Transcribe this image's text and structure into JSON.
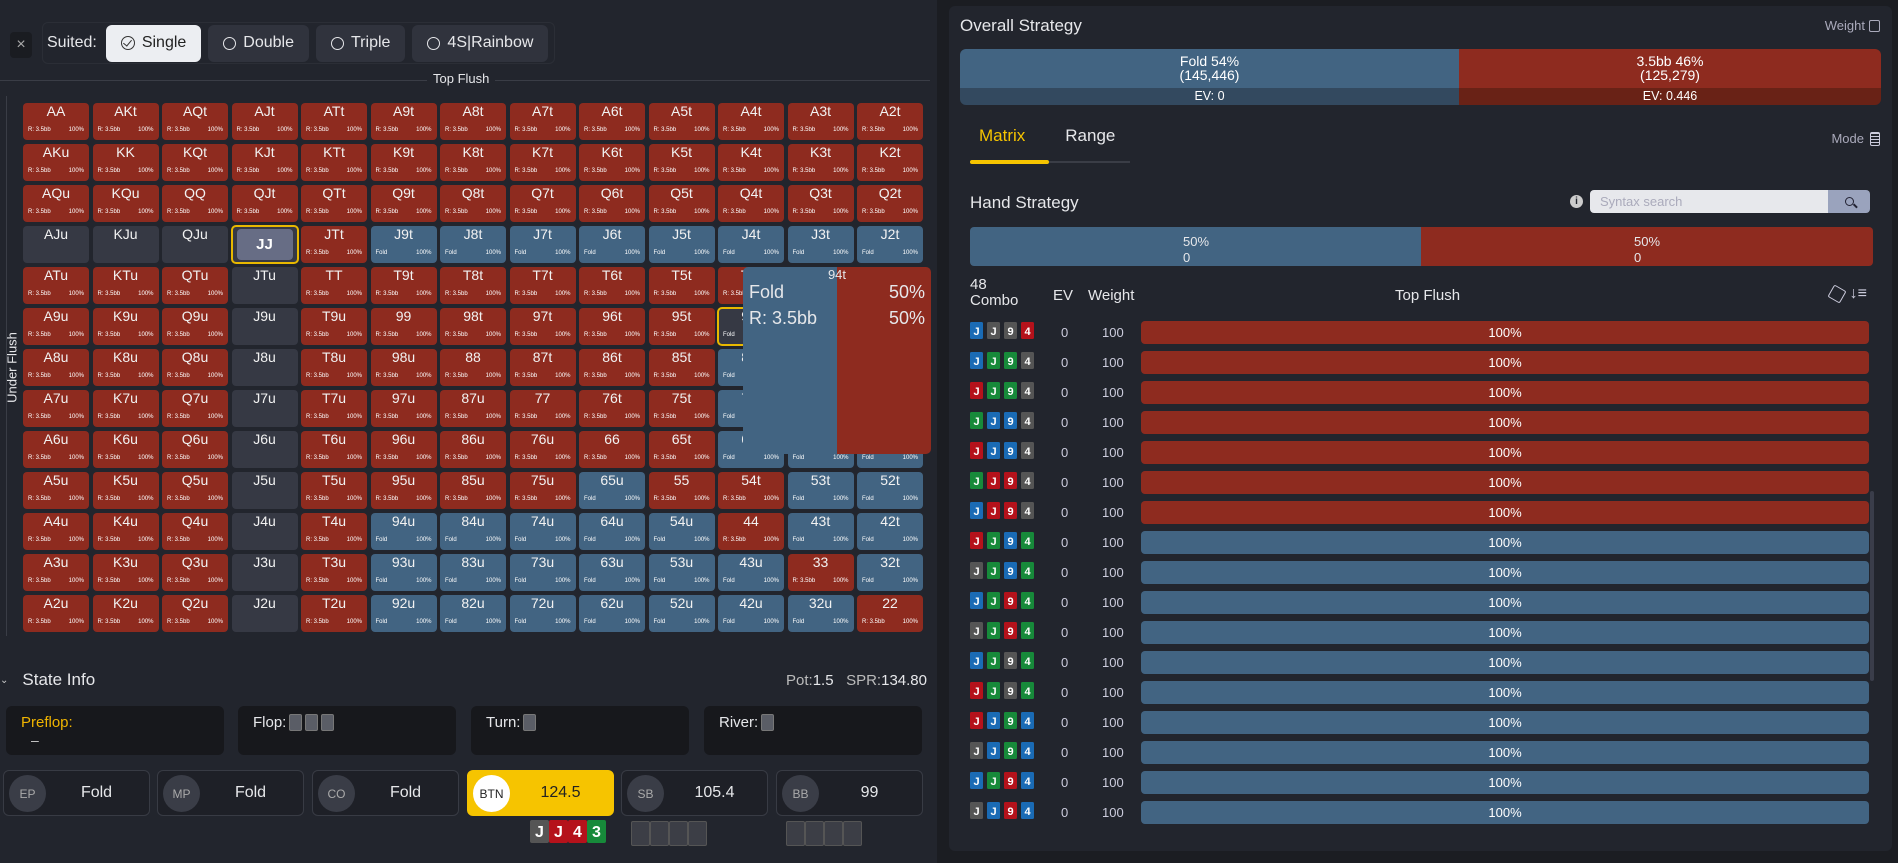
{
  "filters": {
    "close_icon": "×",
    "suited_label": "Suited:",
    "options": [
      {
        "label": "Single",
        "selected": true
      },
      {
        "label": "Double",
        "selected": false
      },
      {
        "label": "Triple",
        "selected": false
      },
      {
        "label": "4S|Rainbow",
        "selected": false
      }
    ]
  },
  "matrix": {
    "top_axis_label": "Top Flush",
    "side_axis_label": "Under Flush",
    "action_labels": {
      "red": "R: 3.5bb",
      "blue": "Fold"
    },
    "colors": {
      "raise": "#8e2b1f",
      "fold": "#426482",
      "empty": "#363944",
      "selected": "#e8b800"
    },
    "rows": [
      [
        [
          "AA",
          "r"
        ],
        [
          "AKt",
          "r"
        ],
        [
          "AQt",
          "r"
        ],
        [
          "AJt",
          "r"
        ],
        [
          "ATt",
          "r"
        ],
        [
          "A9t",
          "r"
        ],
        [
          "A8t",
          "r"
        ],
        [
          "A7t",
          "r"
        ],
        [
          "A6t",
          "r"
        ],
        [
          "A5t",
          "r"
        ],
        [
          "A4t",
          "r"
        ],
        [
          "A3t",
          "r"
        ],
        [
          "A2t",
          "r"
        ]
      ],
      [
        [
          "AKu",
          "r"
        ],
        [
          "KK",
          "r"
        ],
        [
          "KQt",
          "r"
        ],
        [
          "KJt",
          "r"
        ],
        [
          "KTt",
          "r"
        ],
        [
          "K9t",
          "r"
        ],
        [
          "K8t",
          "r"
        ],
        [
          "K7t",
          "r"
        ],
        [
          "K6t",
          "r"
        ],
        [
          "K5t",
          "r"
        ],
        [
          "K4t",
          "r"
        ],
        [
          "K3t",
          "r"
        ],
        [
          "K2t",
          "r"
        ]
      ],
      [
        [
          "AQu",
          "r"
        ],
        [
          "KQu",
          "r"
        ],
        [
          "QQ",
          "r"
        ],
        [
          "QJt",
          "r"
        ],
        [
          "QTt",
          "r"
        ],
        [
          "Q9t",
          "r"
        ],
        [
          "Q8t",
          "r"
        ],
        [
          "Q7t",
          "r"
        ],
        [
          "Q6t",
          "r"
        ],
        [
          "Q5t",
          "r"
        ],
        [
          "Q4t",
          "r"
        ],
        [
          "Q3t",
          "r"
        ],
        [
          "Q2t",
          "r"
        ]
      ],
      [
        [
          "AJu",
          "e"
        ],
        [
          "KJu",
          "e"
        ],
        [
          "QJu",
          "e"
        ],
        [
          "JJ",
          "sel"
        ],
        [
          "JTt",
          "r"
        ],
        [
          "J9t",
          "b"
        ],
        [
          "J8t",
          "b"
        ],
        [
          "J7t",
          "b"
        ],
        [
          "J6t",
          "b"
        ],
        [
          "J5t",
          "b"
        ],
        [
          "J4t",
          "b"
        ],
        [
          "J3t",
          "b"
        ],
        [
          "J2t",
          "b"
        ]
      ],
      [
        [
          "ATu",
          "r"
        ],
        [
          "KTu",
          "r"
        ],
        [
          "QTu",
          "r"
        ],
        [
          "JTu",
          "e"
        ],
        [
          "TT",
          "r"
        ],
        [
          "T9t",
          "r"
        ],
        [
          "T8t",
          "r"
        ],
        [
          "T7t",
          "r"
        ],
        [
          "T6t",
          "r"
        ],
        [
          "T5t",
          "r"
        ],
        [
          "T4t",
          "r"
        ],
        [
          "T3t",
          "b"
        ],
        [
          "T2t",
          "b"
        ]
      ],
      [
        [
          "A9u",
          "r"
        ],
        [
          "K9u",
          "r"
        ],
        [
          "Q9u",
          "r"
        ],
        [
          "J9u",
          "e"
        ],
        [
          "T9u",
          "r"
        ],
        [
          "99",
          "r"
        ],
        [
          "98t",
          "r"
        ],
        [
          "97t",
          "r"
        ],
        [
          "96t",
          "r"
        ],
        [
          "95t",
          "r"
        ],
        [
          "94t",
          "hov"
        ],
        [
          "93t",
          "b"
        ],
        [
          "92t",
          "b"
        ]
      ],
      [
        [
          "A8u",
          "r"
        ],
        [
          "K8u",
          "r"
        ],
        [
          "Q8u",
          "r"
        ],
        [
          "J8u",
          "e"
        ],
        [
          "T8u",
          "r"
        ],
        [
          "98u",
          "r"
        ],
        [
          "88",
          "r"
        ],
        [
          "87t",
          "r"
        ],
        [
          "86t",
          "r"
        ],
        [
          "85t",
          "r"
        ],
        [
          "84t",
          "b"
        ],
        [
          "83t",
          "b"
        ],
        [
          "82t",
          "b"
        ]
      ],
      [
        [
          "A7u",
          "r"
        ],
        [
          "K7u",
          "r"
        ],
        [
          "Q7u",
          "r"
        ],
        [
          "J7u",
          "e"
        ],
        [
          "T7u",
          "r"
        ],
        [
          "97u",
          "r"
        ],
        [
          "87u",
          "r"
        ],
        [
          "77",
          "r"
        ],
        [
          "76t",
          "r"
        ],
        [
          "75t",
          "r"
        ],
        [
          "74t",
          "b"
        ],
        [
          "73t",
          "b"
        ],
        [
          "72t",
          "b"
        ]
      ],
      [
        [
          "A6u",
          "r"
        ],
        [
          "K6u",
          "r"
        ],
        [
          "Q6u",
          "r"
        ],
        [
          "J6u",
          "e"
        ],
        [
          "T6u",
          "r"
        ],
        [
          "96u",
          "r"
        ],
        [
          "86u",
          "r"
        ],
        [
          "76u",
          "r"
        ],
        [
          "66",
          "r"
        ],
        [
          "65t",
          "r"
        ],
        [
          "64t",
          "b"
        ],
        [
          "63t",
          "b"
        ],
        [
          "62t",
          "b"
        ]
      ],
      [
        [
          "A5u",
          "r"
        ],
        [
          "K5u",
          "r"
        ],
        [
          "Q5u",
          "r"
        ],
        [
          "J5u",
          "e"
        ],
        [
          "T5u",
          "r"
        ],
        [
          "95u",
          "r"
        ],
        [
          "85u",
          "r"
        ],
        [
          "75u",
          "r"
        ],
        [
          "65u",
          "b"
        ],
        [
          "55",
          "r"
        ],
        [
          "54t",
          "r"
        ],
        [
          "53t",
          "b"
        ],
        [
          "52t",
          "b"
        ]
      ],
      [
        [
          "A4u",
          "r"
        ],
        [
          "K4u",
          "r"
        ],
        [
          "Q4u",
          "r"
        ],
        [
          "J4u",
          "e"
        ],
        [
          "T4u",
          "r"
        ],
        [
          "94u",
          "b"
        ],
        [
          "84u",
          "b"
        ],
        [
          "74u",
          "b"
        ],
        [
          "64u",
          "b"
        ],
        [
          "54u",
          "b"
        ],
        [
          "44",
          "r"
        ],
        [
          "43t",
          "b"
        ],
        [
          "42t",
          "b"
        ]
      ],
      [
        [
          "A3u",
          "r"
        ],
        [
          "K3u",
          "r"
        ],
        [
          "Q3u",
          "r"
        ],
        [
          "J3u",
          "e"
        ],
        [
          "T3u",
          "r"
        ],
        [
          "93u",
          "b"
        ],
        [
          "83u",
          "b"
        ],
        [
          "73u",
          "b"
        ],
        [
          "63u",
          "b"
        ],
        [
          "53u",
          "b"
        ],
        [
          "43u",
          "b"
        ],
        [
          "33",
          "r"
        ],
        [
          "32t",
          "b"
        ]
      ],
      [
        [
          "A2u",
          "r"
        ],
        [
          "K2u",
          "r"
        ],
        [
          "Q2u",
          "r"
        ],
        [
          "J2u",
          "e"
        ],
        [
          "T2u",
          "r"
        ],
        [
          "92u",
          "b"
        ],
        [
          "82u",
          "b"
        ],
        [
          "72u",
          "b"
        ],
        [
          "62u",
          "b"
        ],
        [
          "52u",
          "b"
        ],
        [
          "42u",
          "b"
        ],
        [
          "32u",
          "b"
        ],
        [
          "22",
          "r"
        ]
      ]
    ],
    "cell_percent": "100%",
    "tooltip": {
      "hand": "94t",
      "actions": [
        {
          "label": "Fold",
          "pct": "50%"
        },
        {
          "label": "R: 3.5bb",
          "pct": "50%"
        }
      ]
    }
  },
  "state_info": {
    "title": "State Info",
    "pot_label": "Pot:",
    "pot_value": "1.5",
    "spr_label": "SPR:",
    "spr_value": "134.80",
    "streets": {
      "preflop": {
        "label": "Preflop:",
        "value": "–"
      },
      "flop": {
        "label": "Flop:"
      },
      "turn": {
        "label": "Turn:"
      },
      "river": {
        "label": "River:"
      }
    },
    "seats": [
      {
        "pos": "EP",
        "value": "Fold"
      },
      {
        "pos": "MP",
        "value": "Fold"
      },
      {
        "pos": "CO",
        "value": "Fold"
      },
      {
        "pos": "BTN",
        "value": "124.5",
        "active": true
      },
      {
        "pos": "SB",
        "value": "105.4"
      },
      {
        "pos": "BB",
        "value": "99"
      }
    ],
    "btn_hand": [
      {
        "rank": "J",
        "suit": "s"
      },
      {
        "rank": "J",
        "suit": "h"
      },
      {
        "rank": "4",
        "suit": "h"
      },
      {
        "rank": "3",
        "suit": "c"
      }
    ]
  },
  "overall_strategy": {
    "title": "Overall Strategy",
    "weight_label": "Weight",
    "fold": {
      "label": "Fold 54%",
      "combos": "(145,446)",
      "ev": "EV: 0"
    },
    "raise": {
      "label": "3.5bb 46%",
      "combos": "(125,279)",
      "ev": "EV: 0.446"
    }
  },
  "tabs": {
    "items": [
      "Matrix",
      "Range"
    ],
    "active": "Matrix",
    "mode_label": "Mode"
  },
  "hand_strategy": {
    "title": "Hand Strategy",
    "search_placeholder": "Syntax search",
    "fold": {
      "pct": "50%",
      "ev": "0"
    },
    "raise": {
      "pct": "50%",
      "ev": "0"
    },
    "header": {
      "count": "48",
      "combo": "Combo",
      "ev": "EV",
      "weight": "Weight",
      "category": "Top Flush"
    },
    "combos": [
      {
        "cards": "Jd Js 9s 4h",
        "ev": "0",
        "weight": "100",
        "action": "raise",
        "pct": "100%"
      },
      {
        "cards": "Jd Jc 9c 4s",
        "ev": "0",
        "weight": "100",
        "action": "raise",
        "pct": "100%"
      },
      {
        "cards": "Jh Jc 9c 4s",
        "ev": "0",
        "weight": "100",
        "action": "raise",
        "pct": "100%"
      },
      {
        "cards": "Jc Jd 9d 4s",
        "ev": "0",
        "weight": "100",
        "action": "raise",
        "pct": "100%"
      },
      {
        "cards": "Jh Jd 9d 4s",
        "ev": "0",
        "weight": "100",
        "action": "raise",
        "pct": "100%"
      },
      {
        "cards": "Jc Jh 9h 4s",
        "ev": "0",
        "weight": "100",
        "action": "raise",
        "pct": "100%"
      },
      {
        "cards": "Jd Jh 9h 4s",
        "ev": "0",
        "weight": "100",
        "action": "raise",
        "pct": "100%"
      },
      {
        "cards": "Jh Jc 9d 4c",
        "ev": "0",
        "weight": "100",
        "action": "fold",
        "pct": "100%"
      },
      {
        "cards": "Js Jc 9d 4c",
        "ev": "0",
        "weight": "100",
        "action": "fold",
        "pct": "100%"
      },
      {
        "cards": "Jd Jc 9h 4c",
        "ev": "0",
        "weight": "100",
        "action": "fold",
        "pct": "100%"
      },
      {
        "cards": "Js Jc 9h 4c",
        "ev": "0",
        "weight": "100",
        "action": "fold",
        "pct": "100%"
      },
      {
        "cards": "Jd Jc 9s 4c",
        "ev": "0",
        "weight": "100",
        "action": "fold",
        "pct": "100%"
      },
      {
        "cards": "Jh Jc 9s 4c",
        "ev": "0",
        "weight": "100",
        "action": "fold",
        "pct": "100%"
      },
      {
        "cards": "Jh Jd 9c 4d",
        "ev": "0",
        "weight": "100",
        "action": "fold",
        "pct": "100%"
      },
      {
        "cards": "Js Jd 9c 4d",
        "ev": "0",
        "weight": "100",
        "action": "fold",
        "pct": "100%"
      },
      {
        "cards": "Jd Jc 9h 4d",
        "ev": "0",
        "weight": "100",
        "action": "fold",
        "pct": "100%"
      },
      {
        "cards": "Js Jd 9h 4d",
        "ev": "0",
        "weight": "100",
        "action": "fold",
        "pct": "100%"
      }
    ],
    "suit_colors": {
      "s": "#555555",
      "h": "#b5121b",
      "d": "#1a6bb5",
      "c": "#178a3a"
    }
  }
}
